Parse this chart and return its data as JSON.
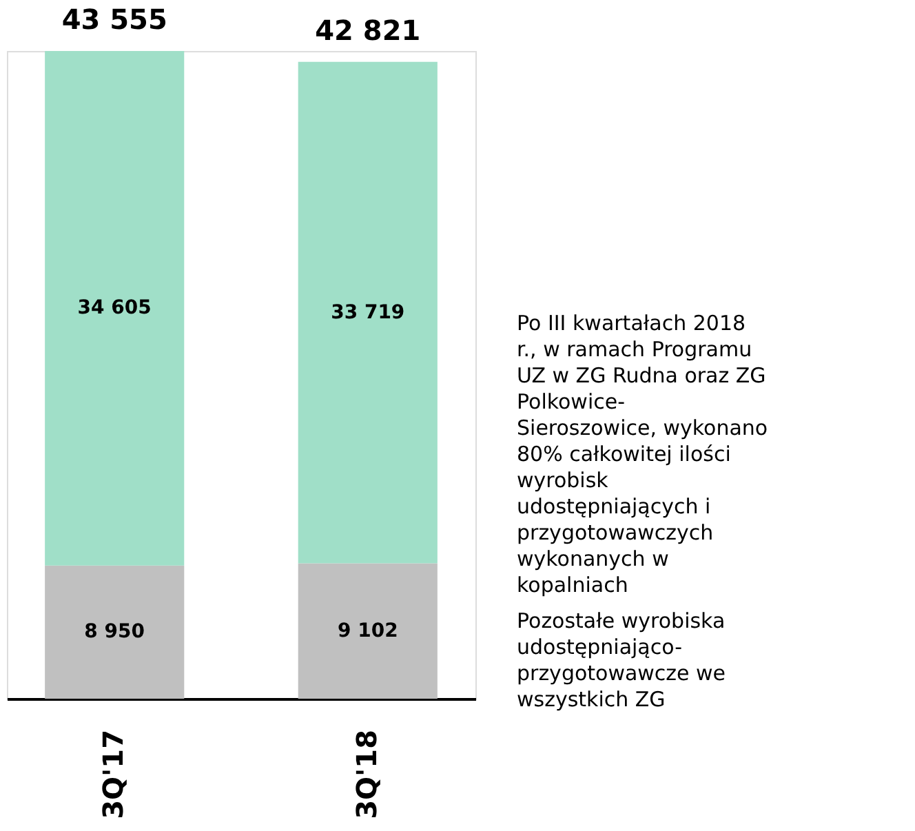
{
  "chart_data": {
    "type": "bar",
    "stacked": true,
    "categories": [
      "3Q'17",
      "3Q'18"
    ],
    "series": [
      {
        "color": "#c0c0c0",
        "values": [
          8950,
          9102
        ],
        "value_labels": [
          "8 950",
          "9 102"
        ]
      },
      {
        "color": "#a0dfc8",
        "values": [
          34605,
          33719
        ],
        "value_labels": [
          "34 605",
          "33 719"
        ]
      }
    ],
    "totals": [
      "43 555",
      "42 821"
    ],
    "annotations": [
      "Po III kwartałach 2018 r., w ramach Programu UZ w ZG Rudna oraz ZG Polkowice-Sieroszowice, wykonano 80% całkowitej ilości wyrobisk udostępniających i przygotowawczych wykonanych w kopalniach",
      "Pozostałe wyrobiska udostępniająco-przygotowawcze we wszystkich ZG"
    ]
  }
}
